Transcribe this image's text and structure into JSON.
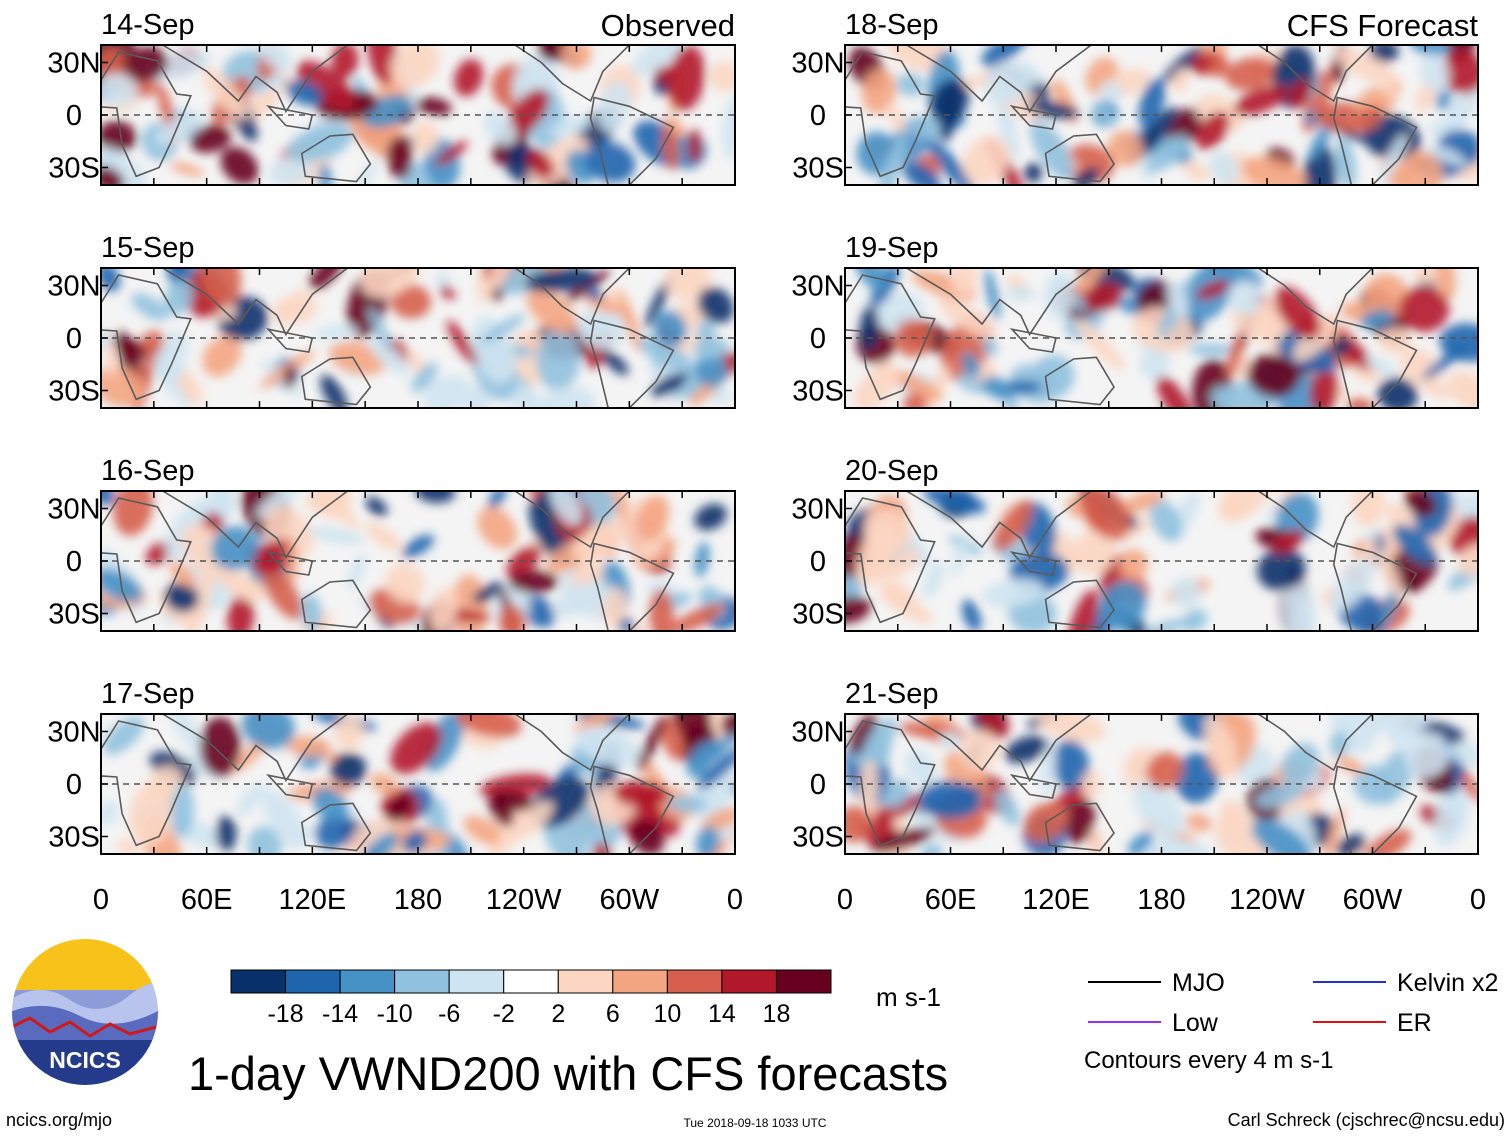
{
  "chart_data": {
    "type": "heatmap",
    "title": "1-day VWND200 with CFS forecasts",
    "variable": "VWND200",
    "units": "m s-1",
    "contour_note": "Contours every 4 m s-1",
    "xlabel": "",
    "ylabel": "",
    "x_ticks": [
      "0",
      "60E",
      "120E",
      "180",
      "120W",
      "60W",
      "0"
    ],
    "y_ticks": [
      "30N",
      "0",
      "30S"
    ],
    "x_range_deg": [
      0,
      360
    ],
    "y_range_deg": [
      -40,
      40
    ],
    "observed_label": "Observed",
    "forecast_label": "CFS Forecast",
    "panels": [
      {
        "date": "14-Sep",
        "column": "observed"
      },
      {
        "date": "15-Sep",
        "column": "observed"
      },
      {
        "date": "16-Sep",
        "column": "observed"
      },
      {
        "date": "17-Sep",
        "column": "observed"
      },
      {
        "date": "18-Sep",
        "column": "forecast"
      },
      {
        "date": "19-Sep",
        "column": "forecast"
      },
      {
        "date": "20-Sep",
        "column": "forecast"
      },
      {
        "date": "21-Sep",
        "column": "forecast"
      }
    ],
    "colorbar": {
      "labels": [
        "-18",
        "-14",
        "-10",
        "-6",
        "-2",
        "2",
        "6",
        "10",
        "14",
        "18"
      ],
      "colors": [
        "#08306b",
        "#1f65ae",
        "#4691c6",
        "#90c1de",
        "#cfe4f1",
        "#ffffff",
        "#fcd6c2",
        "#f4a582",
        "#d6604d",
        "#b2182b",
        "#67001f"
      ]
    },
    "legend": [
      {
        "label": "MJO",
        "color": "#000000"
      },
      {
        "label": "Kelvin x2",
        "color": "#2233cc"
      },
      {
        "label": "Low",
        "color": "#9b30e6"
      },
      {
        "label": "ER",
        "color": "#dd1111"
      }
    ],
    "equator_line": "dashed"
  },
  "footer": {
    "website": "ncics.org/mjo",
    "timestamp": "Tue 2018-09-18 1033 UTC",
    "credit": "Carl Schreck (cjschrec@ncsu.edu)",
    "logo_text": "NCICS"
  }
}
